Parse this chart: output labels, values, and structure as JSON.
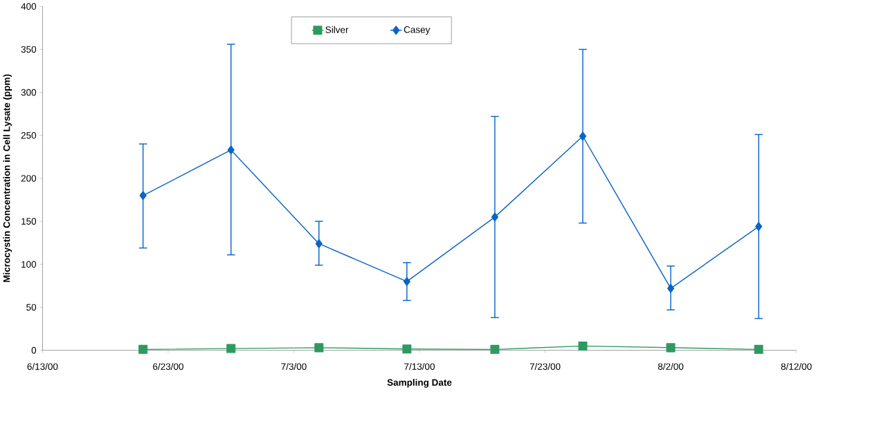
{
  "chart_data": {
    "type": "line",
    "xlabel": "Sampling Date",
    "ylabel": "Microcystin Concentration in Cell Lysate (ppm)",
    "xlim": [
      "2000-06-13",
      "2000-08-12"
    ],
    "xticks": [
      {
        "value": "2000-06-13",
        "label": "6/13/00"
      },
      {
        "value": "2000-06-23",
        "label": "6/23/00"
      },
      {
        "value": "2000-07-03",
        "label": "7/3/00"
      },
      {
        "value": "2000-07-13",
        "label": "7/13/00"
      },
      {
        "value": "2000-07-23",
        "label": "7/23/00"
      },
      {
        "value": "2000-08-02",
        "label": "8/2/00"
      },
      {
        "value": "2000-08-12",
        "label": "8/12/00"
      }
    ],
    "ylim": [
      0,
      400
    ],
    "yticks": [
      0,
      50,
      100,
      150,
      200,
      250,
      300,
      350,
      400
    ],
    "x": [
      "2000-06-21",
      "2000-06-28",
      "2000-07-05",
      "2000-07-12",
      "2000-07-19",
      "2000-07-26",
      "2000-08-02",
      "2000-08-09"
    ],
    "series": [
      {
        "name": "Silver",
        "color": "#2e9a5f",
        "marker": "square",
        "values": [
          1,
          2,
          3,
          1.5,
          1,
          5,
          3,
          1
        ]
      },
      {
        "name": "Casey",
        "color": "#0a64c8",
        "marker": "diamond",
        "values": [
          180,
          233,
          124,
          80,
          155,
          249,
          72,
          144
        ],
        "errors": [
          [
            119,
            240
          ],
          [
            111,
            356
          ],
          [
            99,
            150
          ],
          [
            58,
            102
          ],
          [
            38,
            272
          ],
          [
            148,
            350
          ],
          [
            47,
            98
          ],
          [
            37,
            251
          ]
        ]
      }
    ],
    "legend": "top",
    "grid": false,
    "line_style": "solid"
  }
}
